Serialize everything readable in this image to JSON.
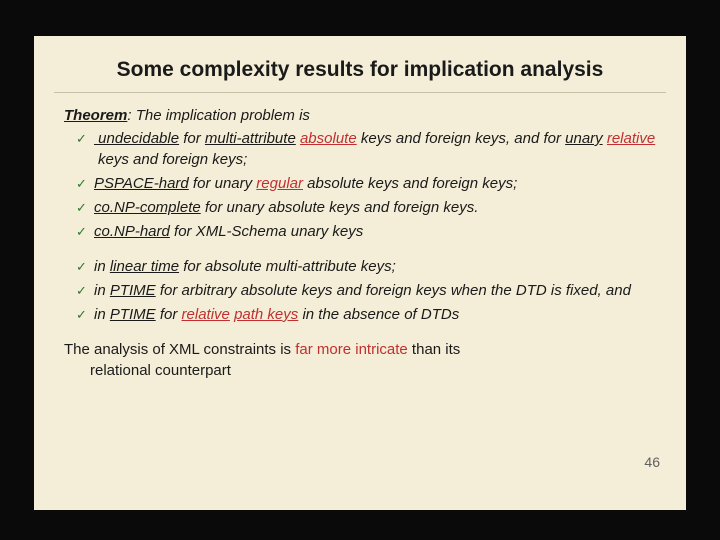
{
  "colors": {
    "page_bg": "#0a0a0a",
    "slide_bg": "#f4eed8",
    "text": "#1a1a1a",
    "red": "#c03030",
    "check": "#2a7a2a",
    "divider": "#c8c0a8",
    "pagenum": "#606060"
  },
  "title": "Some complexity results for implication analysis",
  "theorem": {
    "label_u": "Theorem",
    "label_rest": ": The implication problem is"
  },
  "b1": {
    "a": " undecidable",
    "b": " for ",
    "c": "multi-attribute",
    "d": " ",
    "e": "absolute",
    "f": " keys and foreign keys, and for ",
    "g": "unary",
    "h": " ",
    "i": "relative",
    "j": " keys and foreign keys;"
  },
  "b2": {
    "a": "PSPACE-hard",
    "b": " for unary ",
    "c": "regular",
    "d": " absolute keys and foreign keys;"
  },
  "b3": {
    "a": "co.NP-complete",
    "b": " for unary absolute keys and foreign keys."
  },
  "b4": {
    "a": "co.NP-hard",
    "b": " for XML-Schema unary keys"
  },
  "b5": {
    "a": "in ",
    "b": "linear time",
    "c": " for absolute multi-attribute keys;"
  },
  "b6": {
    "a": "in ",
    "b": "PTIME",
    "c": " for arbitrary absolute keys and foreign keys when the DTD is fixed, and"
  },
  "b7": {
    "a": "in ",
    "b": "PTIME",
    "c": " for ",
    "d": "relative",
    "e": " ",
    "f": "path keys",
    "g": " in the absence of DTDs"
  },
  "footer": {
    "a": "The analysis of XML constraints is ",
    "b": "far more intricate",
    "c": " than its",
    "d": "relational counterpart"
  },
  "check": "✓",
  "pagenum": "46"
}
